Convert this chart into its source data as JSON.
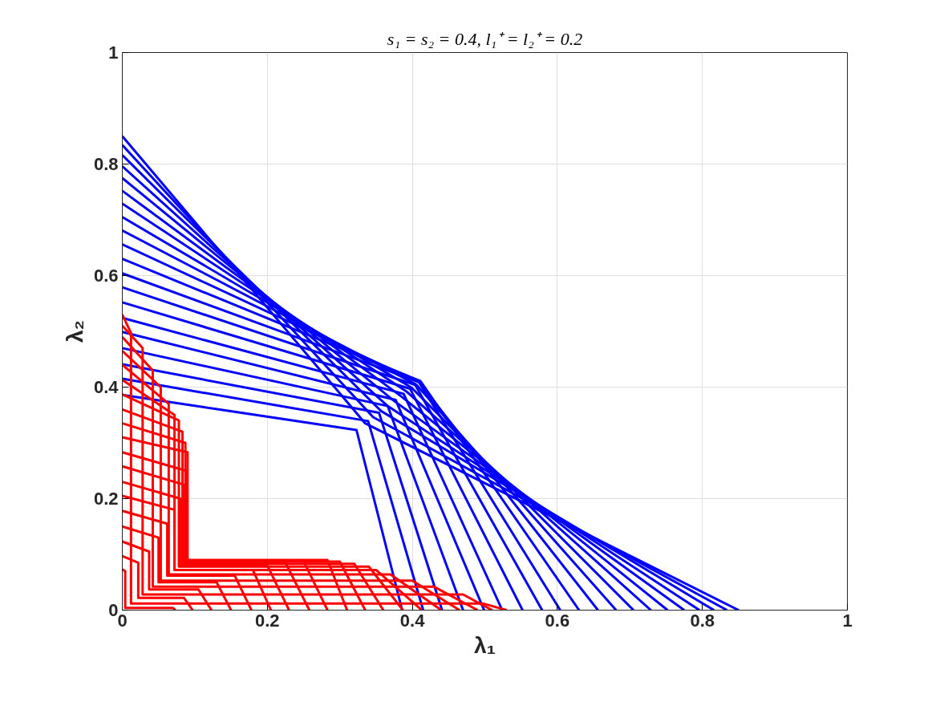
{
  "chart_data": {
    "type": "line",
    "title": "s₁ = s₂ = 0.4, l₁⁺ = l₂⁺ = 0.2",
    "xlabel": "λ₁",
    "ylabel": "λ₂",
    "xlim": [
      0,
      1
    ],
    "ylim": [
      0,
      1
    ],
    "xticks": [
      0,
      0.2,
      0.4,
      0.6,
      0.8,
      1
    ],
    "yticks": [
      0,
      0.2,
      0.4,
      0.6,
      0.8,
      1
    ],
    "grid": true,
    "series": [
      {
        "color": "#0000ff",
        "x": [
          0,
          0.323,
          0.386
        ],
        "values": [
          0.386,
          0.323,
          0
        ]
      },
      {
        "color": "#0000ff",
        "x": [
          0,
          0.339,
          0.415
        ],
        "values": [
          0.415,
          0.339,
          0
        ]
      },
      {
        "color": "#0000ff",
        "x": [
          0,
          0.354,
          0.441
        ],
        "values": [
          0.441,
          0.354,
          0
        ]
      },
      {
        "color": "#0000ff",
        "x": [
          0,
          0.366,
          0.47
        ],
        "values": [
          0.47,
          0.366,
          0
        ]
      },
      {
        "color": "#0000ff",
        "x": [
          0,
          0.377,
          0.499
        ],
        "values": [
          0.499,
          0.377,
          0
        ]
      },
      {
        "color": "#0000ff",
        "x": [
          0,
          0.388,
          0.524
        ],
        "values": [
          0.524,
          0.388,
          0
        ]
      },
      {
        "color": "#0000ff",
        "x": [
          0,
          0.397,
          0.552
        ],
        "values": [
          0.552,
          0.397,
          0
        ]
      },
      {
        "color": "#0000ff",
        "x": [
          0,
          0.404,
          0.579
        ],
        "values": [
          0.579,
          0.404,
          0
        ]
      },
      {
        "color": "#0000ff",
        "x": [
          0,
          0.409,
          0.604
        ],
        "values": [
          0.604,
          0.409,
          0
        ]
      },
      {
        "color": "#0000ff",
        "x": [
          0,
          0.411,
          0.63
        ],
        "values": [
          0.63,
          0.411,
          0
        ]
      },
      {
        "color": "#0000ff",
        "x": [
          0,
          0.409,
          0.656
        ],
        "values": [
          0.656,
          0.409,
          0
        ]
      },
      {
        "color": "#0000ff",
        "x": [
          0,
          0.405,
          0.681
        ],
        "values": [
          0.681,
          0.405,
          0
        ]
      },
      {
        "color": "#0000ff",
        "x": [
          0,
          0.399,
          0.705
        ],
        "values": [
          0.705,
          0.399,
          0
        ]
      },
      {
        "color": "#0000ff",
        "x": [
          0,
          0.392,
          0.729
        ],
        "values": [
          0.729,
          0.392,
          0
        ]
      },
      {
        "color": "#0000ff",
        "x": [
          0,
          0.384,
          0.752
        ],
        "values": [
          0.752,
          0.384,
          0
        ]
      },
      {
        "color": "#0000ff",
        "x": [
          0,
          0.375,
          0.775
        ],
        "values": [
          0.775,
          0.375,
          0
        ]
      },
      {
        "color": "#0000ff",
        "x": [
          0,
          0.366,
          0.796
        ],
        "values": [
          0.796,
          0.366,
          0
        ]
      },
      {
        "color": "#0000ff",
        "x": [
          0,
          0.357,
          0.816
        ],
        "values": [
          0.816,
          0.357,
          0
        ]
      },
      {
        "color": "#0000ff",
        "x": [
          0,
          0.346,
          0.834
        ],
        "values": [
          0.834,
          0.346,
          0
        ]
      },
      {
        "color": "#0000ff",
        "x": [
          0,
          0.335,
          0.85
        ],
        "values": [
          0.85,
          0.335,
          0
        ]
      },
      {
        "color": "#ff0000",
        "x": [
          0,
          0.012,
          0.012,
          0.497,
          0.53
        ],
        "values": [
          0.53,
          0.497,
          0.012,
          0.012,
          0
        ]
      },
      {
        "color": "#ff0000",
        "x": [
          0,
          0.028,
          0.028,
          0.47,
          0.51
        ],
        "values": [
          0.51,
          0.47,
          0.028,
          0.028,
          0
        ]
      },
      {
        "color": "#ff0000",
        "x": [
          0,
          0.042,
          0.042,
          0.43,
          0.49
        ],
        "values": [
          0.49,
          0.43,
          0.042,
          0.042,
          0
        ]
      },
      {
        "color": "#ff0000",
        "x": [
          0,
          0.053,
          0.053,
          0.4,
          0.465
        ],
        "values": [
          0.465,
          0.4,
          0.053,
          0.053,
          0
        ]
      },
      {
        "color": "#ff0000",
        "x": [
          0,
          0.064,
          0.064,
          0.37,
          0.44
        ],
        "values": [
          0.44,
          0.37,
          0.064,
          0.064,
          0
        ]
      },
      {
        "color": "#ff0000",
        "x": [
          0,
          0.072,
          0.072,
          0.35,
          0.413
        ],
        "values": [
          0.413,
          0.35,
          0.072,
          0.072,
          0
        ]
      },
      {
        "color": "#ff0000",
        "x": [
          0,
          0.078,
          0.078,
          0.34,
          0.387
        ],
        "values": [
          0.387,
          0.34,
          0.078,
          0.078,
          0
        ]
      },
      {
        "color": "#ff0000",
        "x": [
          0,
          0.083,
          0.083,
          0.32,
          0.36
        ],
        "values": [
          0.36,
          0.32,
          0.083,
          0.083,
          0
        ]
      },
      {
        "color": "#ff0000",
        "x": [
          0,
          0.087,
          0.087,
          0.3,
          0.335
        ],
        "values": [
          0.335,
          0.3,
          0.087,
          0.087,
          0
        ]
      },
      {
        "color": "#ff0000",
        "x": [
          0,
          0.09,
          0.09,
          0.283,
          0.31
        ],
        "values": [
          0.31,
          0.283,
          0.09,
          0.09,
          0
        ]
      },
      {
        "color": "#ff0000",
        "x": [
          0,
          0.088,
          0.088,
          0.25,
          0.283
        ],
        "values": [
          0.283,
          0.25,
          0.088,
          0.088,
          0
        ]
      },
      {
        "color": "#ff0000",
        "x": [
          0,
          0.085,
          0.085,
          0.225,
          0.258
        ],
        "values": [
          0.258,
          0.225,
          0.085,
          0.085,
          0
        ]
      },
      {
        "color": "#ff0000",
        "x": [
          0,
          0.08,
          0.08,
          0.2,
          0.23
        ],
        "values": [
          0.23,
          0.2,
          0.08,
          0.08,
          0
        ]
      },
      {
        "color": "#ff0000",
        "x": [
          0,
          0.072,
          0.072,
          0.18,
          0.205
        ],
        "values": [
          0.205,
          0.18,
          0.072,
          0.072,
          0
        ]
      },
      {
        "color": "#ff0000",
        "x": [
          0,
          0.062,
          0.062,
          0.155,
          0.178
        ],
        "values": [
          0.178,
          0.155,
          0.062,
          0.062,
          0
        ]
      },
      {
        "color": "#ff0000",
        "x": [
          0,
          0.05,
          0.05,
          0.13,
          0.15
        ],
        "values": [
          0.15,
          0.13,
          0.05,
          0.05,
          0
        ]
      },
      {
        "color": "#ff0000",
        "x": [
          0,
          0.037,
          0.037,
          0.105,
          0.123
        ],
        "values": [
          0.123,
          0.105,
          0.037,
          0.037,
          0
        ]
      },
      {
        "color": "#ff0000",
        "x": [
          0,
          0.022,
          0.022,
          0.085,
          0.097
        ],
        "values": [
          0.097,
          0.085,
          0.022,
          0.022,
          0
        ]
      },
      {
        "color": "#ff0000",
        "x": [
          0,
          0.004,
          0.004,
          0.07,
          0.073
        ],
        "values": [
          0.073,
          0.07,
          0.004,
          0.004,
          0
        ]
      }
    ]
  }
}
